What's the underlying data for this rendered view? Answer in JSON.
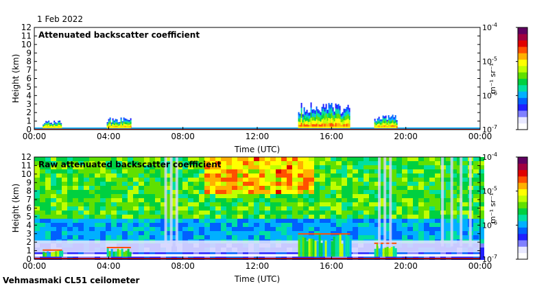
{
  "header": {
    "date": "1 Feb 2022"
  },
  "footer": {
    "instrument": "Vehmasmaki CL51 ceilometer"
  },
  "chart_data": [
    {
      "type": "heatmap",
      "title": "Attenuated backscatter coefficient",
      "xlabel": "Time (UTC)",
      "ylabel": "Height (km)",
      "x_ticks": [
        "00:00",
        "04:00",
        "08:00",
        "12:00",
        "16:00",
        "20:00",
        "00:00"
      ],
      "xlim_hours": [
        0,
        24
      ],
      "y_ticks": [
        0,
        1,
        2,
        3,
        4,
        5,
        6,
        7,
        8,
        9,
        10,
        11,
        12
      ],
      "ylim_km": [
        0,
        12
      ],
      "colorbar": {
        "scale": "log",
        "range": [
          1e-07,
          0.0001
        ],
        "tick_mantissa": "10",
        "tick_exponents": [
          "-7",
          "-6",
          "-5",
          "-4"
        ],
        "unit": "m⁻¹ sr⁻¹"
      },
      "features": [
        {
          "label": "low layer",
          "t_start": 0.45,
          "t_end": 1.5,
          "top_km": 1.1
        },
        {
          "label": "low layer",
          "t_start": 3.9,
          "t_end": 5.2,
          "top_km": 1.5
        },
        {
          "label": "cloud tops",
          "t_start": 14.2,
          "t_end": 17.0,
          "top_km": 3.2
        },
        {
          "label": "cloud tops",
          "t_start": 18.3,
          "t_end": 19.5,
          "top_km": 1.8
        }
      ]
    },
    {
      "type": "heatmap",
      "title": "Raw attenuated backscatter coefficient",
      "xlabel": "Time (UTC)",
      "ylabel": "Height (km)",
      "x_ticks": [
        "00:00",
        "04:00",
        "08:00",
        "12:00",
        "16:00",
        "20:00",
        "00:00"
      ],
      "xlim_hours": [
        0,
        24
      ],
      "y_ticks": [
        0,
        1,
        2,
        3,
        4,
        5,
        6,
        7,
        8,
        9,
        10,
        11,
        12
      ],
      "ylim_km": [
        0,
        12
      ],
      "colorbar": {
        "scale": "log",
        "range": [
          1e-07,
          0.0001
        ],
        "tick_mantissa": "10",
        "tick_exponents": [
          "-7",
          "-6",
          "-5",
          "-4"
        ],
        "unit": "m⁻¹ sr⁻¹"
      },
      "noise_columns_hours": [
        7.0,
        7.3,
        7.6,
        18.5,
        18.8,
        19.1,
        21.9,
        22.4,
        22.9,
        23.4
      ]
    }
  ],
  "colors": {
    "colormap": [
      "#ffffff",
      "#e8e8ff",
      "#8080ff",
      "#2020ff",
      "#0060ff",
      "#00b0ff",
      "#00e0a0",
      "#00d040",
      "#60e000",
      "#c0ff00",
      "#ffff00",
      "#ffb000",
      "#ff5000",
      "#e00000",
      "#a00040",
      "#600060"
    ]
  }
}
